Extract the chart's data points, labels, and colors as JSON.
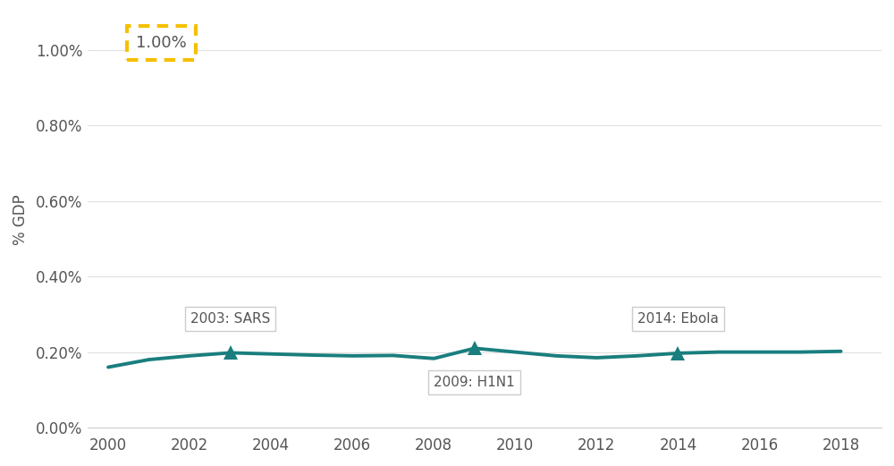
{
  "x": [
    2000,
    2001,
    2002,
    2003,
    2004,
    2005,
    2006,
    2007,
    2008,
    2009,
    2010,
    2011,
    2012,
    2013,
    2014,
    2015,
    2016,
    2017,
    2018
  ],
  "y": [
    0.0016,
    0.0018,
    0.0019,
    0.00198,
    0.00195,
    0.00192,
    0.0019,
    0.00191,
    0.00183,
    0.0021,
    0.002,
    0.0019,
    0.00185,
    0.0019,
    0.00197,
    0.002,
    0.002,
    0.002,
    0.00202
  ],
  "line_color": "#1a7e7e",
  "marker_color": "#1a7e7e",
  "annotation_events": [
    {
      "year": 2003,
      "label": "2003: SARS",
      "position": "above"
    },
    {
      "year": 2009,
      "label": "2009: H1N1",
      "position": "below"
    },
    {
      "year": 2014,
      "label": "2014: Ebola",
      "position": "above"
    }
  ],
  "dashed_box_value": "1.00%",
  "dashed_box_color": "#f5c000",
  "ylabel": "% GDP",
  "ylim_min": 0.0,
  "ylim_max": 0.011,
  "yticks": [
    0.0,
    0.002,
    0.004,
    0.006,
    0.008,
    0.01
  ],
  "ytick_labels": [
    "0.00%",
    "0.20%",
    "0.40%",
    "0.60%",
    "0.80%",
    "1.00%"
  ],
  "xticks": [
    2000,
    2002,
    2004,
    2006,
    2008,
    2010,
    2012,
    2014,
    2016,
    2018
  ],
  "xlim_min": 1999.5,
  "xlim_max": 2019.0,
  "background_color": "#ffffff",
  "text_color": "#555555",
  "axis_fontsize": 12,
  "tick_fontsize": 12,
  "annot_fontsize": 11,
  "line_width": 2.8
}
